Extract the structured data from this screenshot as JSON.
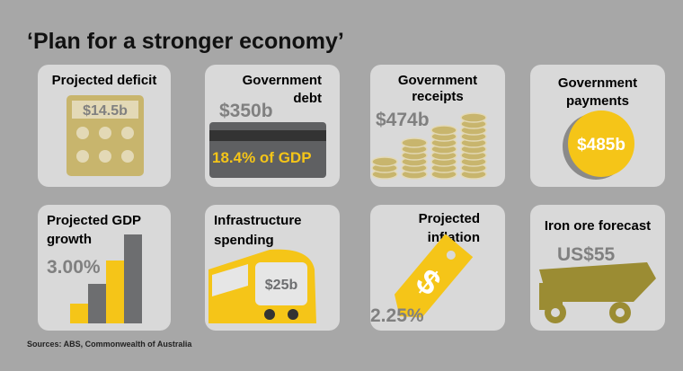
{
  "title": "‘Plan for a stronger economy’",
  "cards": [
    {
      "label": [
        "Projected deficit"
      ],
      "value": "$14.5b"
    },
    {
      "label": [
        "Government",
        "debt"
      ],
      "value": "$350b",
      "note": "18.4% of GDP"
    },
    {
      "label": [
        "Government",
        "receipts"
      ],
      "value": "$474b"
    },
    {
      "label": [
        "Government",
        "payments"
      ],
      "value": "$485b"
    },
    {
      "label": [
        "Projected GDP",
        "growth"
      ],
      "value": "3.00%"
    },
    {
      "label": [
        "Infrastructure",
        "spending"
      ],
      "value": "$25b"
    },
    {
      "label": [
        "Projected",
        "inflation"
      ],
      "value": "2.25%"
    },
    {
      "label": [
        "Iron ore forecast"
      ],
      "value": "US$55"
    }
  ],
  "source": "Sources: ABS, Commonwealth of Australia"
}
